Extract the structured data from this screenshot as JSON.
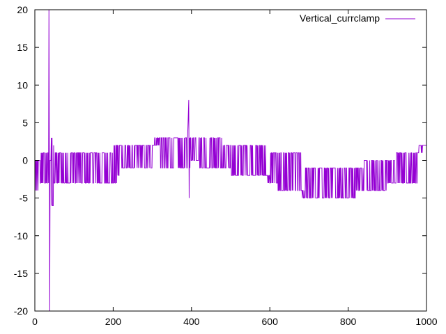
{
  "chart_data": {
    "type": "line",
    "title": "",
    "xlabel": "",
    "ylabel": "",
    "xlim": [
      0,
      1000
    ],
    "ylim": [
      -20,
      20
    ],
    "xticks": [
      0,
      200,
      400,
      600,
      800,
      1000
    ],
    "yticks": [
      -20,
      -15,
      -10,
      -5,
      0,
      5,
      10,
      15,
      20
    ],
    "grid": false,
    "legend": "top-right",
    "series": [
      {
        "name": "Vertical_currclamp",
        "color": "#9400d3",
        "description_of_shape": "integer-valued noisy trace",
        "x": [
          0,
          5,
          10,
          15,
          20,
          25,
          30,
          35,
          36,
          37,
          38,
          39,
          40,
          42,
          45,
          48,
          50,
          55,
          60,
          65,
          70,
          80,
          90,
          100,
          120,
          140,
          160,
          180,
          200,
          210,
          215,
          220,
          240,
          260,
          280,
          300,
          320,
          340,
          360,
          380,
          390,
          393,
          394,
          395,
          396,
          398,
          400,
          420,
          440,
          460,
          480,
          500,
          520,
          540,
          560,
          580,
          590,
          600,
          620,
          640,
          660,
          680,
          690,
          700,
          720,
          740,
          760,
          780,
          800,
          820,
          840,
          860,
          880,
          900,
          920,
          940,
          960,
          980,
          990,
          1000
        ],
        "y": [
          0,
          -4,
          0,
          -3,
          1,
          -3,
          1,
          -3,
          20,
          1,
          -20,
          0,
          0,
          3,
          -6,
          2,
          -3,
          1,
          -3,
          1,
          -3,
          1,
          -3,
          1,
          -3,
          1,
          -3,
          1,
          -3,
          2,
          -2,
          2,
          -1,
          2,
          -1,
          2,
          3,
          -1,
          3,
          -1,
          3,
          8,
          -5,
          3,
          -1,
          3,
          0,
          3,
          -1,
          3,
          -1,
          2,
          -2,
          2,
          -2,
          2,
          -2,
          -3,
          1,
          -4,
          1,
          -4,
          -5,
          -1,
          -5,
          -1,
          -5,
          -1,
          -5,
          -1,
          -4,
          0,
          -4,
          0,
          -3,
          1,
          -3,
          1,
          2,
          2
        ]
      }
    ]
  }
}
